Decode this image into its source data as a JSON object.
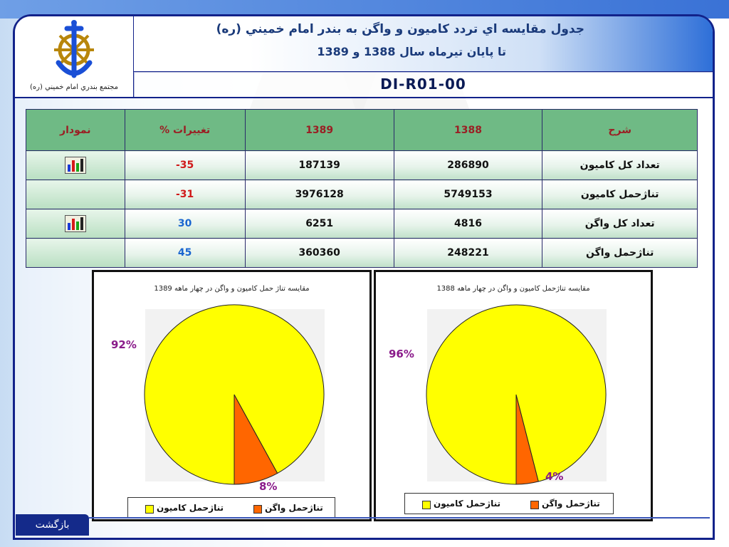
{
  "header": {
    "title_line1": "جدول مقايسه اي تردد كاميون و واگن به بندر امام خميني (ره)",
    "title_line2": "تا پايان تيرماه سال 1388 و 1389",
    "doc_code": "DI-R01-00",
    "logo_caption": "مجتمع بندري امام خميني (ره)"
  },
  "table": {
    "headers": [
      "نمودار",
      "% تغييرات",
      "1389",
      "1388",
      "شرح"
    ],
    "rows": [
      {
        "desc": "تعداد كل كاميون",
        "v1388": "286890",
        "v1389": "187139",
        "change": "-35",
        "has_chart": true
      },
      {
        "desc": "تناژحمل كاميون",
        "v1388": "5749153",
        "v1389": "3976128",
        "change": "-31",
        "has_chart": false
      },
      {
        "desc": "تعداد كل واگن",
        "v1388": "4816",
        "v1389": "6251",
        "change": "30",
        "has_chart": true
      },
      {
        "desc": "تناژحمل واگن",
        "v1388": "248221",
        "v1389": "360360",
        "change": "45",
        "has_chart": false
      }
    ]
  },
  "chart_data": [
    {
      "type": "pie",
      "title": "مقايسه تناژ حمل كاميون و واگن در چهار ماهه 1389",
      "categories": [
        "تناژحمل كاميون",
        "تناژحمل واگن"
      ],
      "values": [
        92,
        8
      ],
      "labels": [
        "92%",
        "8%"
      ],
      "colors": [
        "#ffff00",
        "#ff6600"
      ],
      "legend": "bottom"
    },
    {
      "type": "pie",
      "title": "مقايسه تناژحمل كاميون و واگن در چهار ماهه 1388",
      "categories": [
        "تناژحمل كاميون",
        "تناژحمل واگن"
      ],
      "values": [
        96,
        4
      ],
      "labels": [
        "96%",
        "4%"
      ],
      "colors": [
        "#ffff00",
        "#ff6600"
      ],
      "legend": "bottom"
    }
  ],
  "nav": {
    "back_label": "بازگشت"
  },
  "icons": {
    "logo": "anchor-wheel-logo-icon",
    "chart_button": "bar-chart-icon"
  }
}
